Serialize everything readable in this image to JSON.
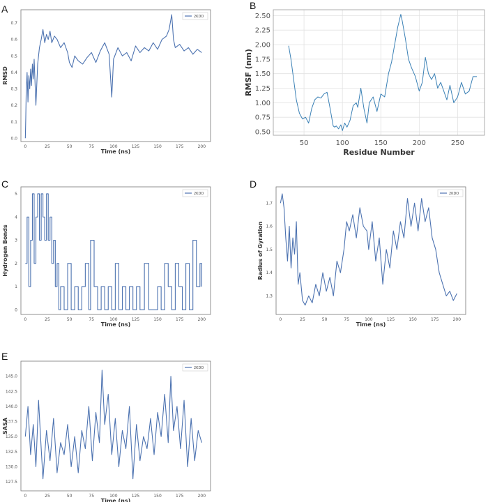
{
  "chart_data": [
    {
      "id": "A",
      "type": "line",
      "panel_label": "A",
      "xlabel": "Time (ns)",
      "ylabel": "RMSD",
      "xlim": [
        -5,
        210
      ],
      "ylim": [
        -0.02,
        0.78
      ],
      "xticks": [
        0,
        25,
        50,
        75,
        100,
        125,
        150,
        175,
        200
      ],
      "yticks": [
        0.0,
        0.1,
        0.2,
        0.3,
        0.4,
        0.5,
        0.6,
        0.7
      ],
      "ytick_labels": [
        "0.0",
        "0.1",
        "0.2",
        "0.3",
        "0.4",
        "0.5",
        "0.6",
        "0.7"
      ],
      "grid": false,
      "legend": "top-right",
      "color": "#4c72b0",
      "series": [
        {
          "name": "2KDO",
          "x": [
            0,
            0.5,
            1,
            2,
            3,
            4,
            5,
            6,
            7,
            8,
            9,
            10,
            12,
            14,
            16,
            18,
            20,
            22,
            24,
            26,
            28,
            30,
            33,
            36,
            40,
            44,
            48,
            50,
            53,
            56,
            60,
            65,
            70,
            75,
            80,
            85,
            90,
            95,
            98,
            100,
            105,
            110,
            115,
            120,
            125,
            130,
            135,
            140,
            145,
            150,
            155,
            160,
            163,
            166,
            168,
            170,
            175,
            180,
            185,
            190,
            195,
            200
          ],
          "values": [
            0.0,
            0.12,
            0.28,
            0.4,
            0.22,
            0.38,
            0.3,
            0.42,
            0.32,
            0.45,
            0.36,
            0.48,
            0.2,
            0.45,
            0.55,
            0.6,
            0.66,
            0.58,
            0.63,
            0.6,
            0.65,
            0.58,
            0.62,
            0.6,
            0.55,
            0.58,
            0.52,
            0.46,
            0.43,
            0.5,
            0.47,
            0.45,
            0.49,
            0.52,
            0.46,
            0.53,
            0.58,
            0.51,
            0.25,
            0.48,
            0.55,
            0.5,
            0.52,
            0.47,
            0.56,
            0.52,
            0.55,
            0.53,
            0.58,
            0.54,
            0.6,
            0.62,
            0.66,
            0.75,
            0.6,
            0.55,
            0.57,
            0.53,
            0.55,
            0.51,
            0.54,
            0.52
          ]
        }
      ]
    },
    {
      "id": "B",
      "type": "line",
      "panel_label": "B",
      "xlabel": "Residue Number",
      "ylabel": "RMSF (nm)",
      "xlim": [
        10,
        285
      ],
      "ylim": [
        0.44,
        2.6
      ],
      "xticks": [
        50,
        100,
        150,
        200,
        250
      ],
      "yticks": [
        0.5,
        0.75,
        1.0,
        1.25,
        1.5,
        1.75,
        2.0,
        2.25,
        2.5
      ],
      "ytick_labels": [
        "0.50",
        "0.75",
        "1.00",
        "1.25",
        "1.50",
        "1.75",
        "2.00",
        "2.25",
        "2.50"
      ],
      "grid": true,
      "legend": "none",
      "color": "#3a80b5",
      "series": [
        {
          "x": [
            30,
            33,
            36,
            40,
            44,
            48,
            52,
            56,
            60,
            64,
            68,
            72,
            76,
            80,
            84,
            88,
            90,
            92,
            95,
            98,
            100,
            103,
            106,
            110,
            114,
            118,
            120,
            124,
            128,
            132,
            135,
            140,
            145,
            150,
            155,
            160,
            164,
            168,
            172,
            176,
            178,
            182,
            186,
            190,
            195,
            200,
            204,
            208,
            212,
            216,
            220,
            224,
            228,
            232,
            236,
            240,
            245,
            250,
            255,
            260,
            265,
            270,
            275
          ],
          "values": [
            1.98,
            1.75,
            1.45,
            1.05,
            0.82,
            0.72,
            0.75,
            0.65,
            0.9,
            1.05,
            1.1,
            1.08,
            1.15,
            1.18,
            0.9,
            0.6,
            0.58,
            0.6,
            0.55,
            0.62,
            0.52,
            0.65,
            0.58,
            0.7,
            0.95,
            1.0,
            0.92,
            1.25,
            0.9,
            0.65,
            1.0,
            1.1,
            0.85,
            1.15,
            1.1,
            1.5,
            1.7,
            2.0,
            2.3,
            2.52,
            2.4,
            2.1,
            1.75,
            1.6,
            1.45,
            1.2,
            1.35,
            1.78,
            1.5,
            1.4,
            1.5,
            1.25,
            1.35,
            1.2,
            1.05,
            1.3,
            1.0,
            1.1,
            1.35,
            1.15,
            1.2,
            1.45,
            1.45
          ]
        }
      ]
    },
    {
      "id": "C",
      "type": "line",
      "panel_label": "C",
      "xlabel": "Time (ns)",
      "ylabel": "Hydrogen Bonds",
      "xlim": [
        -5,
        210
      ],
      "ylim": [
        -0.2,
        5.3
      ],
      "xticks": [
        0,
        25,
        50,
        75,
        100,
        125,
        150,
        175,
        200
      ],
      "yticks": [
        0,
        1,
        2,
        3,
        4,
        5
      ],
      "ytick_labels": [
        "0",
        "1",
        "2",
        "3",
        "4",
        "5"
      ],
      "grid": false,
      "legend": "top-right",
      "color": "#4c72b0",
      "series": [
        {
          "name": "2KDO",
          "x": [
            0,
            2,
            4,
            6,
            8,
            10,
            12,
            14,
            16,
            18,
            20,
            22,
            24,
            26,
            28,
            30,
            32,
            34,
            36,
            38,
            40,
            44,
            48,
            52,
            56,
            60,
            64,
            68,
            72,
            74,
            78,
            82,
            86,
            90,
            94,
            98,
            102,
            106,
            110,
            114,
            118,
            122,
            126,
            130,
            135,
            140,
            145,
            150,
            154,
            158,
            162,
            166,
            170,
            174,
            178,
            182,
            186,
            190,
            194,
            198,
            200
          ],
          "values": [
            2,
            4,
            1,
            3,
            5,
            2,
            4,
            5,
            3,
            5,
            4,
            3,
            5,
            3,
            4,
            2,
            3,
            1,
            2,
            0,
            1,
            0,
            2,
            0,
            1,
            0,
            1,
            2,
            0,
            3,
            1,
            0,
            1,
            0,
            1,
            0,
            2,
            0,
            1,
            0,
            1,
            0,
            1,
            0,
            2,
            0,
            0,
            1,
            0,
            2,
            1,
            0,
            2,
            1,
            0,
            2,
            0,
            3,
            1,
            2,
            1
          ]
        }
      ]
    },
    {
      "id": "D",
      "type": "line",
      "panel_label": "D",
      "xlabel": "Time (ns)",
      "ylabel": "Radius of Gyration",
      "xlim": [
        -5,
        210
      ],
      "ylim": [
        1.22,
        1.77
      ],
      "xticks": [
        0,
        25,
        50,
        75,
        100,
        125,
        150,
        175,
        200
      ],
      "yticks": [
        1.3,
        1.4,
        1.5,
        1.6,
        1.7
      ],
      "ytick_labels": [
        "1.3",
        "1.4",
        "1.5",
        "1.6",
        "1.7"
      ],
      "grid": false,
      "legend": "top-right",
      "color": "#4c72b0",
      "series": [
        {
          "name": "2KDO",
          "x": [
            0,
            2,
            4,
            6,
            8,
            10,
            12,
            14,
            16,
            18,
            20,
            22,
            25,
            28,
            32,
            36,
            40,
            44,
            48,
            52,
            56,
            60,
            64,
            68,
            72,
            75,
            78,
            82,
            86,
            90,
            94,
            98,
            100,
            104,
            108,
            112,
            116,
            120,
            124,
            128,
            132,
            136,
            140,
            144,
            148,
            152,
            156,
            160,
            164,
            168,
            172,
            176,
            180,
            184,
            188,
            192,
            196,
            200
          ],
          "values": [
            1.7,
            1.74,
            1.68,
            1.55,
            1.45,
            1.6,
            1.42,
            1.55,
            1.48,
            1.62,
            1.35,
            1.4,
            1.28,
            1.26,
            1.3,
            1.27,
            1.35,
            1.3,
            1.4,
            1.32,
            1.38,
            1.3,
            1.45,
            1.4,
            1.5,
            1.62,
            1.58,
            1.65,
            1.55,
            1.68,
            1.6,
            1.58,
            1.5,
            1.62,
            1.45,
            1.55,
            1.35,
            1.5,
            1.42,
            1.58,
            1.5,
            1.62,
            1.55,
            1.72,
            1.6,
            1.7,
            1.58,
            1.72,
            1.62,
            1.68,
            1.55,
            1.5,
            1.4,
            1.35,
            1.3,
            1.32,
            1.28,
            1.31
          ]
        }
      ]
    },
    {
      "id": "E",
      "type": "line",
      "panel_label": "E",
      "xlabel": "Time (ns)",
      "ylabel": "SASA",
      "xlim": [
        -5,
        210
      ],
      "ylim": [
        126,
        147.5
      ],
      "xticks": [
        0,
        25,
        50,
        75,
        100,
        125,
        150,
        175,
        200
      ],
      "yticks": [
        127.5,
        130,
        132.5,
        135,
        137.5,
        140,
        142.5,
        145
      ],
      "ytick_labels": [
        "127.5",
        "130.0",
        "132.5",
        "135.0",
        "137.5",
        "140.0",
        "142.5",
        "145.0"
      ],
      "grid": false,
      "legend": "top-right",
      "color": "#4c72b0",
      "series": [
        {
          "name": "2KDO",
          "x": [
            0,
            3,
            6,
            9,
            12,
            15,
            18,
            20,
            24,
            28,
            32,
            36,
            40,
            44,
            48,
            52,
            56,
            60,
            64,
            68,
            72,
            76,
            80,
            84,
            87,
            90,
            94,
            98,
            102,
            106,
            110,
            114,
            118,
            122,
            126,
            130,
            134,
            138,
            142,
            146,
            150,
            154,
            158,
            162,
            165,
            168,
            172,
            176,
            180,
            184,
            188,
            192,
            196,
            200
          ],
          "values": [
            135,
            140,
            132,
            137,
            130,
            141,
            133,
            128,
            136,
            131,
            138,
            129,
            134,
            132,
            137,
            130,
            135,
            129,
            136,
            133,
            140,
            131,
            139,
            134,
            146,
            137,
            142,
            132,
            138,
            130,
            136,
            133,
            140,
            128,
            137,
            131,
            135,
            133,
            138,
            132,
            139,
            135,
            142,
            134,
            145,
            136,
            140,
            133,
            141,
            130,
            138,
            131,
            136,
            134
          ]
        }
      ]
    }
  ]
}
